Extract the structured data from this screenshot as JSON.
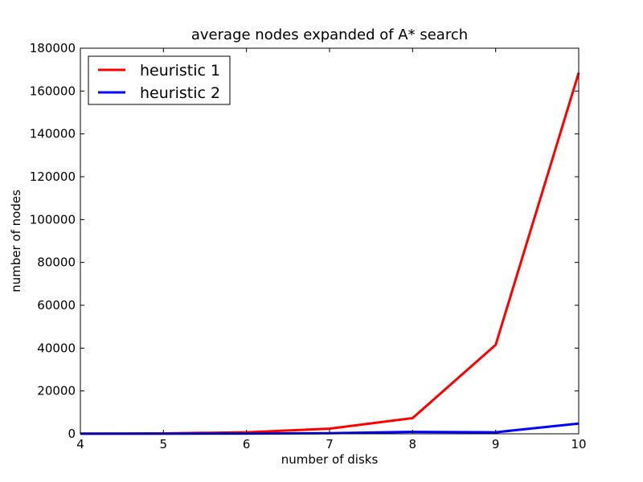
{
  "chart_data": {
    "type": "line",
    "title": "average nodes expanded of A* search",
    "xlabel": "number of disks",
    "ylabel": "number of nodes",
    "xlim": [
      4,
      10
    ],
    "ylim": [
      0,
      180000
    ],
    "x": [
      4,
      5,
      6,
      7,
      8,
      9,
      10
    ],
    "xticks": [
      "4",
      "5",
      "6",
      "7",
      "8",
      "9",
      "10"
    ],
    "yticks": [
      "0",
      "20000",
      "40000",
      "60000",
      "80000",
      "100000",
      "120000",
      "140000",
      "160000",
      "180000"
    ],
    "ytick_values": [
      0,
      20000,
      40000,
      60000,
      80000,
      100000,
      120000,
      140000,
      160000,
      180000
    ],
    "grid": false,
    "legend_position": "top-left",
    "series": [
      {
        "name": "heuristic 1",
        "color": "#ff0000",
        "values": [
          60,
          200,
          700,
          2400,
          7300,
          41500,
          168500
        ]
      },
      {
        "name": "heuristic 2",
        "color": "#0000ff",
        "values": [
          20,
          50,
          120,
          300,
          900,
          700,
          4800
        ]
      }
    ]
  }
}
